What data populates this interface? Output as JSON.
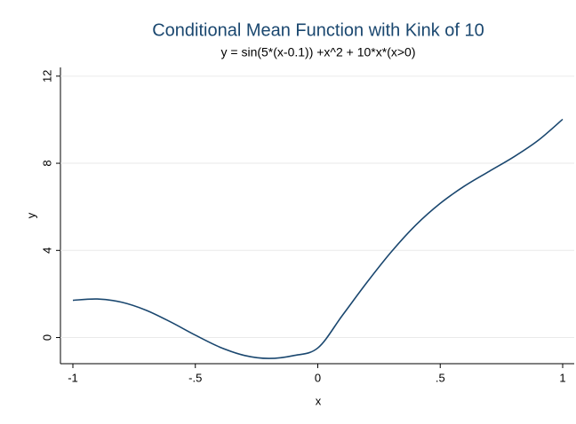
{
  "chart_data": {
    "type": "line",
    "title": "Conditional Mean Function with Kink of 10",
    "subtitle": "y = sin(5*(x-0.1)) +x^2 + 10*x*(x>0)",
    "x_label": "x",
    "y_label": "y",
    "x": [
      -1,
      -0.9,
      -0.8,
      -0.7,
      -0.6,
      -0.5,
      -0.4,
      -0.3,
      -0.2,
      -0.1,
      0,
      0.1,
      0.2,
      0.3,
      0.4,
      0.5,
      0.6,
      0.7,
      0.8,
      0.9,
      1
    ],
    "series": [
      {
        "color": "#1a476f",
        "values": [
          1.71,
          1.77,
          1.62,
          1.25,
          0.71,
          0.11,
          -0.44,
          -0.82,
          -0.96,
          -0.83,
          -0.48,
          1.01,
          2.52,
          3.93,
          5.16,
          6.16,
          6.96,
          7.63,
          8.29,
          9.05,
          10.02
        ]
      }
    ],
    "xlim": [
      -1,
      1
    ],
    "xticks": [
      -1,
      {
        "value": -0.5,
        "label": "-.5"
      },
      0,
      {
        "value": 0.5,
        "label": ".5"
      },
      1
    ],
    "ylim": [
      -1.2,
      12.4
    ],
    "yticks": [
      0,
      4,
      8,
      12
    ],
    "grid": true
  }
}
